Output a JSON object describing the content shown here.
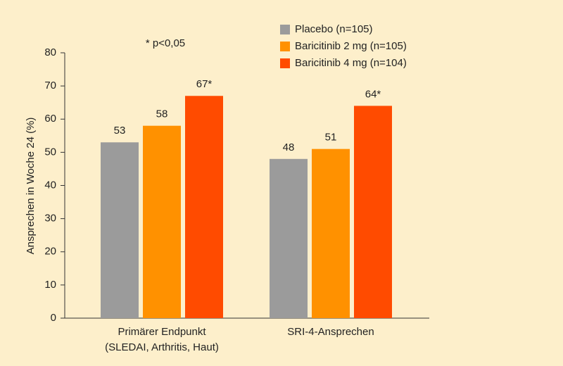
{
  "chart_data": {
    "type": "bar",
    "y_label": "Ansprechen in Woche 24 (%)",
    "annotation": "* p<0,05",
    "categories": [
      [
        "Primärer Endpunkt",
        "(SLEDAI, Arthritis, Haut)"
      ],
      [
        "SRI-4-Ansprechen"
      ]
    ],
    "series": [
      {
        "name": "Placebo (n=105)",
        "color": "#9b9b9b",
        "values": [
          53,
          48
        ],
        "value_labels": [
          "53",
          "48"
        ]
      },
      {
        "name": "Baricitinib 2 mg (n=105)",
        "color": "#ff9100",
        "values": [
          58,
          51
        ],
        "value_labels": [
          "58",
          "51"
        ]
      },
      {
        "name": "Baricitinib 4 mg (n=104)",
        "color": "#ff4b00",
        "values": [
          67,
          64
        ],
        "value_labels": [
          "67*",
          "64*"
        ]
      }
    ],
    "ylim": [
      0,
      80
    ],
    "yticks": [
      0,
      10,
      20,
      30,
      40,
      50,
      60,
      70,
      80
    ],
    "grid": false
  }
}
